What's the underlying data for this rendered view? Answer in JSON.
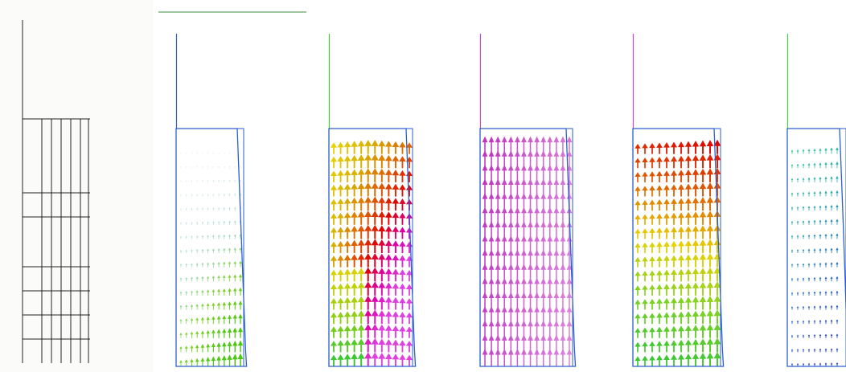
{
  "scene": {
    "description_free": true,
    "mesh_grid": {
      "columns": 6,
      "rows": 7
    },
    "panels": [
      {
        "id": "panel-1",
        "field_color_top": "#ffffff",
        "field_color_bottom": "#7ed321",
        "profile": "lower-dense"
      },
      {
        "id": "panel-2",
        "field_color_top": "#e8d200",
        "field_color_bottom": "#3cc832",
        "profile": "rainbow-mid"
      },
      {
        "id": "panel-3",
        "field_color_top": "#d040d0",
        "field_color_bottom": "#e070e0",
        "profile": "uniform"
      },
      {
        "id": "panel-4",
        "field_color_top": "#e00000",
        "field_color_bottom": "#40c820",
        "profile": "gradient-red-green"
      },
      {
        "id": "panel-5",
        "field_color_top": "#30c0a0",
        "field_color_bottom": "#1030c0",
        "profile": "sparse-blue"
      }
    ],
    "colors": {
      "outline": "#2a5fd0",
      "mesh": "#222222",
      "top_rule": "#3c8c3c",
      "axis_green": "#40d040",
      "axis_magenta": "#e040e0",
      "axis_blue": "#2a5fd0"
    }
  }
}
